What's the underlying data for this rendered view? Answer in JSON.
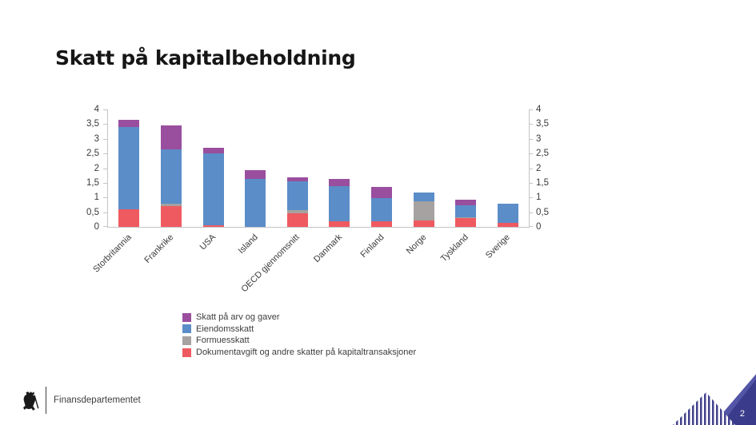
{
  "slide": {
    "title": "Skatt på kapitalbeholdning",
    "page_number": "2"
  },
  "footer": {
    "org_name": "Finansdepartementet",
    "crest_icon": "norwegian-lion-crest"
  },
  "colors": {
    "series_red": "#ef5a60",
    "series_gray": "#a5a2a1",
    "series_blue": "#5b8dc8",
    "series_purple": "#9a4e9e",
    "axis_line": "#c4c4c4",
    "corner_dark": "#3b3b8c",
    "corner_light": "#5355a6",
    "corner_stripe": "#42428f"
  },
  "chart_data": {
    "type": "bar",
    "stacked": true,
    "title": "",
    "categories": [
      "Storbritannia",
      "Frankrike",
      "USA",
      "Island",
      "OECD gjennomsnitt",
      "Danmark",
      "Finland",
      "Norge",
      "Tyskland",
      "Sverige"
    ],
    "series": [
      {
        "name": "Dokumentavgift og andre skatter på kapitaltransaksjoner",
        "color": "#ef5a60",
        "values": [
          0.6,
          0.7,
          0.05,
          0.0,
          0.45,
          0.2,
          0.2,
          0.23,
          0.29,
          0.14
        ]
      },
      {
        "name": "Formuesskatt",
        "color": "#a5a2a1",
        "values": [
          0.0,
          0.08,
          0.0,
          0.0,
          0.12,
          0.0,
          0.0,
          0.65,
          0.04,
          0.0
        ]
      },
      {
        "name": "Eiendomsskatt",
        "color": "#5b8dc8",
        "values": [
          2.8,
          1.87,
          2.45,
          1.62,
          0.97,
          1.18,
          0.77,
          0.29,
          0.4,
          0.66
        ]
      },
      {
        "name": "Skatt på arv og gaver",
        "color": "#9a4e9e",
        "values": [
          0.25,
          0.8,
          0.2,
          0.32,
          0.14,
          0.24,
          0.38,
          0.0,
          0.2,
          0.0
        ]
      }
    ],
    "totals": [
      3.65,
      3.45,
      2.7,
      1.94,
      1.68,
      1.62,
      1.35,
      1.17,
      0.93,
      0.8
    ],
    "ylim": [
      0,
      4
    ],
    "ytick_step": 0.5,
    "ytick_labels": [
      "0",
      "0,5",
      "1",
      "1,5",
      "2",
      "2,5",
      "3",
      "3,5",
      "4"
    ],
    "y_axis_mirrored_right": true,
    "grid": false,
    "legend_position": "bottom-left",
    "legend": [
      {
        "label": "Skatt på arv og gaver",
        "color": "#9a4e9e"
      },
      {
        "label": "Eiendomsskatt",
        "color": "#5b8dc8"
      },
      {
        "label": "Formuesskatt",
        "color": "#a5a2a1"
      },
      {
        "label": "Dokumentavgift og andre skatter på kapitaltransaksjoner",
        "color": "#ef5a60"
      }
    ]
  }
}
